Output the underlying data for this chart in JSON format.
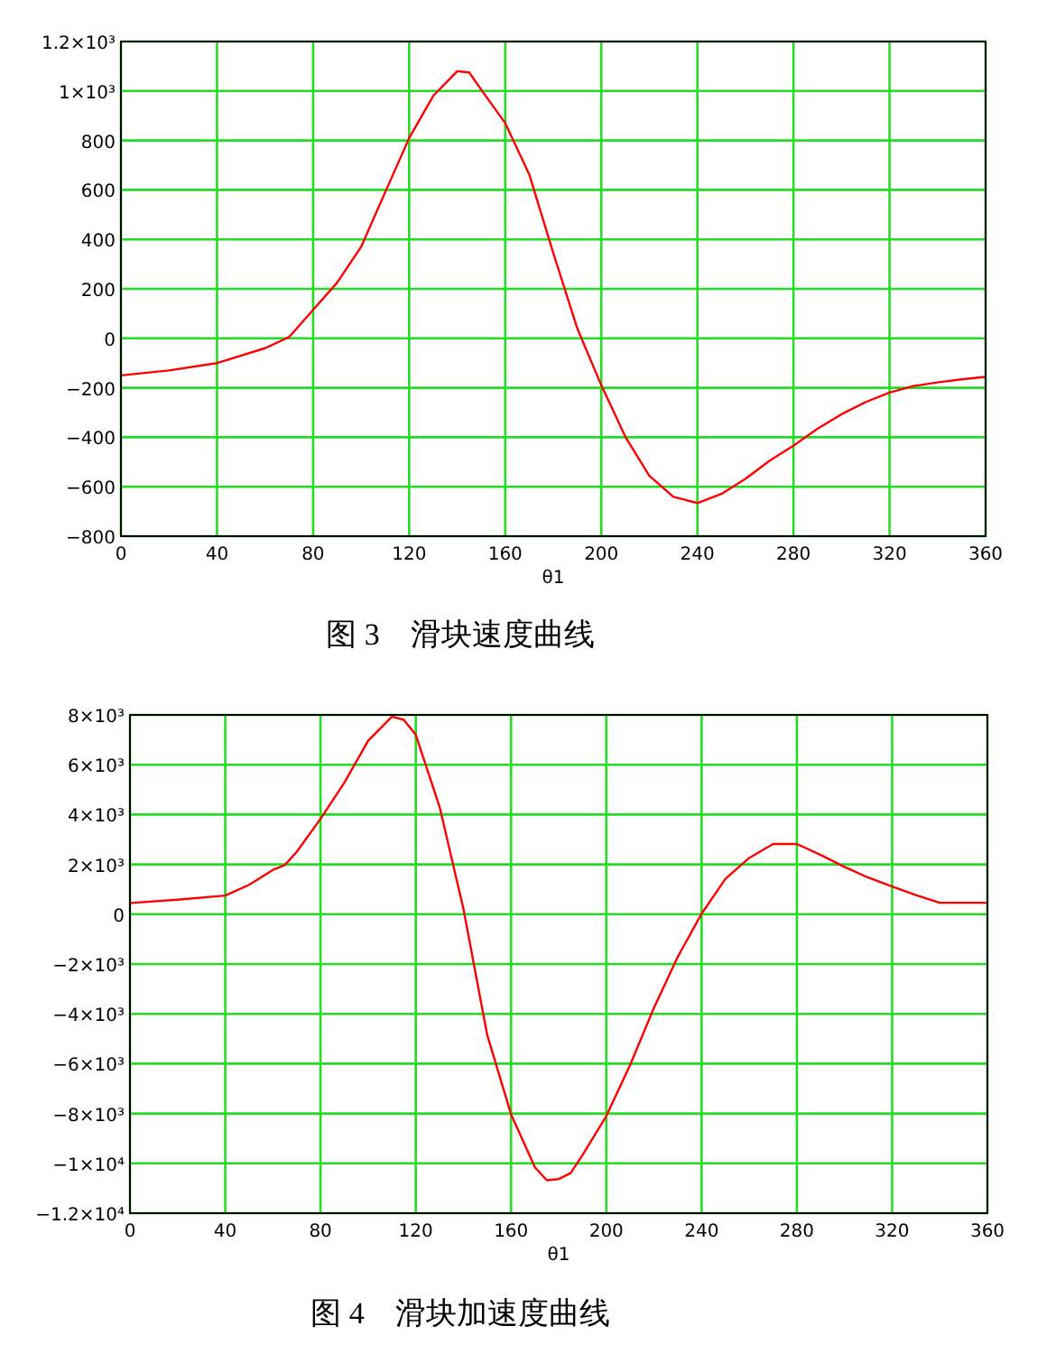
{
  "chart_data": [
    {
      "type": "line",
      "title": "图 3　滑块速度曲线",
      "xlabel": "θ1",
      "color": "#ff0000",
      "grid": true,
      "line_style": "solid",
      "marker": "none",
      "x": [
        0,
        20,
        40,
        60,
        70,
        80,
        90,
        100,
        110,
        120,
        130,
        140,
        145,
        150,
        160,
        170,
        180,
        190,
        200,
        210,
        220,
        230,
        240,
        250,
        260,
        270,
        280,
        290,
        300,
        310,
        320,
        330,
        340,
        350,
        360
      ],
      "values": [
        -150,
        -130,
        -100,
        -40,
        5,
        115,
        225,
        370,
        590,
        810,
        980,
        1080,
        1075,
        1005,
        870,
        663,
        345,
        40,
        -190,
        -398,
        -556,
        -641,
        -666,
        -629,
        -568,
        -495,
        -434,
        -366,
        -307,
        -258,
        -219,
        -193,
        -178,
        -166,
        -156
      ],
      "xlim": [
        0,
        360
      ],
      "ylim": [
        -800,
        1200
      ],
      "xticks": [
        0,
        40,
        80,
        120,
        160,
        200,
        240,
        280,
        320,
        360
      ],
      "yticks": [
        {
          "value": -800,
          "label": "−800"
        },
        {
          "value": -600,
          "label": "−600"
        },
        {
          "value": -400,
          "label": "−400"
        },
        {
          "value": -200,
          "label": "−200"
        },
        0,
        200,
        400,
        600,
        800,
        {
          "value": 1000,
          "label": "1×10³"
        },
        {
          "value": 1200,
          "label": "1.2×10³"
        }
      ]
    },
    {
      "type": "line",
      "title": "图 4　滑块加速度曲线",
      "xlabel": "θ1",
      "color": "#ff0000",
      "grid": true,
      "line_style": "solid",
      "marker": "none",
      "x": [
        0,
        20,
        40,
        50,
        60,
        65,
        70,
        80,
        90,
        100,
        110,
        115,
        120,
        130,
        140,
        150,
        160,
        170,
        175,
        180,
        185,
        190,
        200,
        210,
        220,
        230,
        240,
        250,
        260,
        270,
        280,
        290,
        300,
        310,
        320,
        330,
        340,
        350,
        360
      ],
      "values": [
        450,
        580,
        750,
        1180,
        1780,
        1970,
        2500,
        3830,
        5280,
        6960,
        7930,
        7800,
        7200,
        4310,
        220,
        -4850,
        -8030,
        -10150,
        -10680,
        -10630,
        -10390,
        -9670,
        -8100,
        -6050,
        -3760,
        -1710,
        20,
        1420,
        2260,
        2820,
        2820,
        2380,
        1900,
        1470,
        1110,
        770,
        460,
        460,
        460
      ],
      "xlim": [
        0,
        360
      ],
      "ylim": [
        -12000,
        8000
      ],
      "xticks": [
        0,
        40,
        80,
        120,
        160,
        200,
        240,
        280,
        320,
        360
      ],
      "yticks": [
        {
          "value": -12000,
          "label": "−1.2×10⁴"
        },
        {
          "value": -10000,
          "label": "−1×10⁴"
        },
        {
          "value": -8000,
          "label": "−8×10³"
        },
        {
          "value": -6000,
          "label": "−6×10³"
        },
        {
          "value": -4000,
          "label": "−4×10³"
        },
        {
          "value": -2000,
          "label": "−2×10³"
        },
        0,
        {
          "value": 2000,
          "label": "2×10³"
        },
        {
          "value": 4000,
          "label": "4×10³"
        },
        {
          "value": 6000,
          "label": "6×10³"
        },
        {
          "value": 8000,
          "label": "8×10³"
        }
      ]
    }
  ]
}
